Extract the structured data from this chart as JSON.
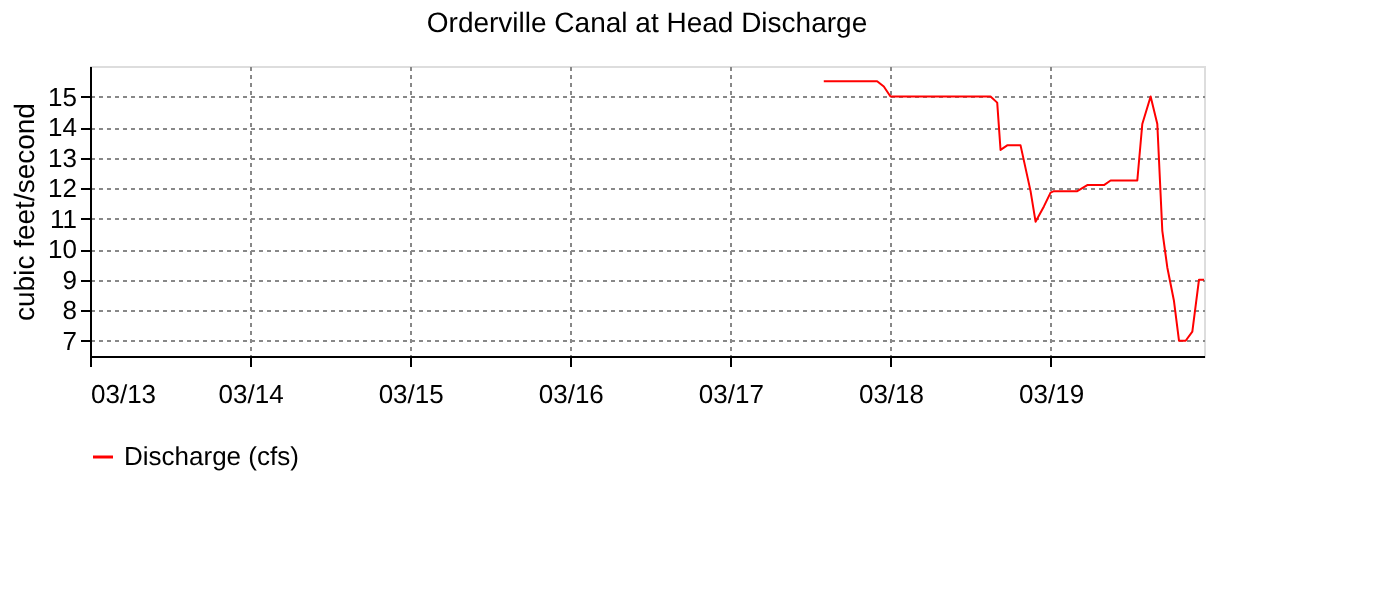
{
  "chart_data": {
    "type": "line",
    "title": "Orderville Canal at Head Discharge",
    "ylabel": "cubic feet/second",
    "x": [
      "--03-17T14:00",
      "--03-17T22:00",
      "--03-17T23:00",
      "--03-18T00:00",
      "--03-18T15:00",
      "--03-18T16:00",
      "--03-18T16:30",
      "--03-18T17:30",
      "--03-18T19:30",
      "--03-18T21:00",
      "--03-18T21:45",
      "--03-18T23:00",
      "--03-19T00:00",
      "--03-19T00:30",
      "--03-19T04:00",
      "--03-19T05:30",
      "--03-19T08:00",
      "--03-19T09:00",
      "--03-19T13:00",
      "--03-19T13:45",
      "--03-19T15:00",
      "--03-19T16:00",
      "--03-19T16:45",
      "--03-19T17:30",
      "--03-19T18:30",
      "--03-19T19:15",
      "--03-19T20:15",
      "--03-19T21:15",
      "--03-19T22:15",
      "--03-19T23:00"
    ],
    "series": [
      {
        "name": "Discharge (cfs)",
        "color": "#ff0000",
        "values": [
          15.5,
          15.5,
          15.33,
          15,
          15,
          14.8,
          13.25,
          13.4,
          13.4,
          11.9,
          10.9,
          11.4,
          11.85,
          11.9,
          11.9,
          12.1,
          12.1,
          12.25,
          12.25,
          14.1,
          15,
          14.1,
          10.6,
          9.4,
          8.3,
          7,
          7,
          7.3,
          9,
          9
        ]
      }
    ],
    "xlim": [
      "--03-13T00:00",
      "--03-19T23:00"
    ],
    "xticks": [
      {
        "value": "--03-13",
        "label": "03/13"
      },
      {
        "value": "--03-14",
        "label": "03/14"
      },
      {
        "value": "--03-15",
        "label": "03/15"
      },
      {
        "value": "--03-16",
        "label": "03/16"
      },
      {
        "value": "--03-17",
        "label": "03/17"
      },
      {
        "value": "--03-18",
        "label": "03/18"
      },
      {
        "value": "--03-19",
        "label": "03/19"
      }
    ],
    "ylim": [
      6.5,
      16
    ],
    "yticks": [
      7,
      8,
      9,
      10,
      11,
      12,
      13,
      14,
      15
    ],
    "grid": true,
    "legend": "bottom",
    "marker": "none",
    "line_style": "solid"
  }
}
